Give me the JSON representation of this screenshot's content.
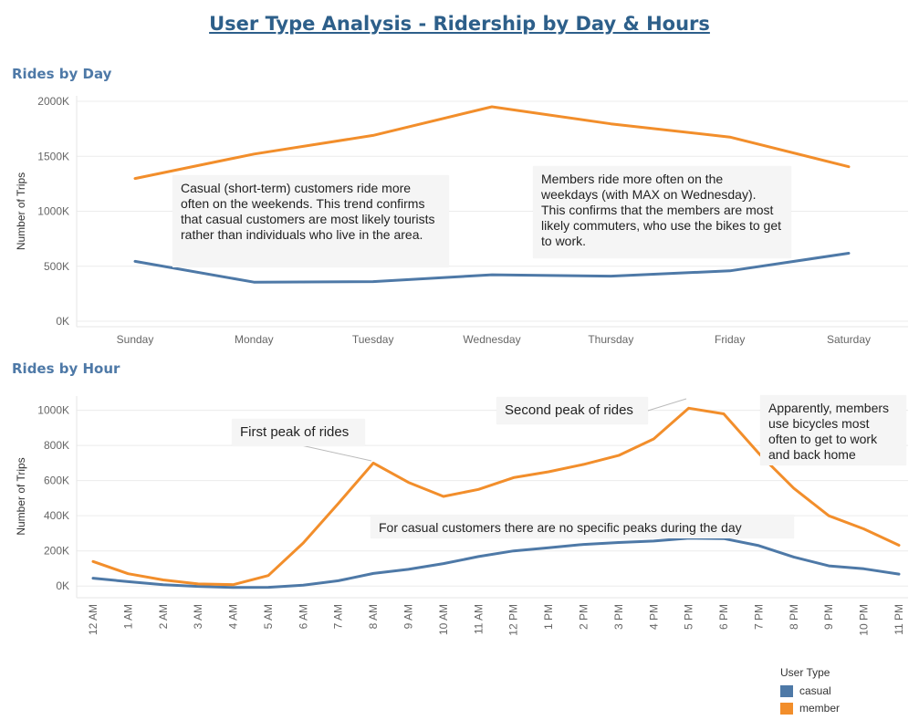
{
  "title": "User Type Analysis  - Ridership by Day & Hours",
  "colors": {
    "casual": "#4e79a7",
    "member": "#f28e2b"
  },
  "chart_data": [
    {
      "type": "line",
      "title": "Rides by Day",
      "ylabel": "Number of Trips",
      "xlabel": "",
      "categories": [
        "Sunday",
        "Monday",
        "Tuesday",
        "Wednesday",
        "Thursday",
        "Friday",
        "Saturday"
      ],
      "series": [
        {
          "name": "casual",
          "values": [
            544000,
            355000,
            360000,
            422000,
            410000,
            458000,
            618000
          ]
        },
        {
          "name": "member",
          "values": [
            1298000,
            1520000,
            1690000,
            1950000,
            1795000,
            1675000,
            1405000
          ]
        }
      ],
      "ylim": [
        0,
        2000000
      ],
      "yticks": [
        0,
        500000,
        1000000,
        1500000,
        2000000
      ],
      "ytick_labels": [
        "0K",
        "500K",
        "1000K",
        "1500K",
        "2000K"
      ],
      "grid": true
    },
    {
      "type": "line",
      "title": "Rides by Hour",
      "ylabel": "Number of Trips",
      "xlabel": "",
      "categories": [
        "12 AM",
        "1 AM",
        "2 AM",
        "3 AM",
        "4 AM",
        "5 AM",
        "6 AM",
        "7 AM",
        "8 AM",
        "9 AM",
        "10 AM",
        "11 AM",
        "12 PM",
        "1 PM",
        "2 PM",
        "3 PM",
        "4 PM",
        "5 PM",
        "6 PM",
        "7 PM",
        "8 PM",
        "9 PM",
        "10 PM",
        "11 PM"
      ],
      "series": [
        {
          "name": "casual",
          "values": [
            45000,
            25000,
            8000,
            -2000,
            -8000,
            -7000,
            5000,
            30000,
            72000,
            95000,
            128000,
            168000,
            200000,
            218000,
            237000,
            248000,
            256000,
            272000,
            270000,
            230000,
            165000,
            115000,
            98000,
            68000
          ]
        },
        {
          "name": "member",
          "values": [
            140000,
            70000,
            35000,
            12000,
            8000,
            60000,
            245000,
            470000,
            700000,
            590000,
            510000,
            550000,
            617000,
            650000,
            692000,
            743000,
            837000,
            1012000,
            980000,
            755000,
            556000,
            400000,
            325000,
            232000
          ]
        }
      ],
      "ylim": [
        -30000,
        1050000
      ],
      "yticks": [
        0,
        200000,
        400000,
        600000,
        800000,
        1000000
      ],
      "ytick_labels": [
        "0K",
        "200K",
        "400K",
        "600K",
        "800K",
        "1000K"
      ],
      "grid": true
    }
  ],
  "annotations": {
    "day_casual": "Casual (short-term) customers ride more often on the weekends. This trend confirms that casual customers are most likely tourists rather than individuals who live in the area.",
    "day_member": "Members ride more often on the weekdays (with MAX on Wednesday). This confirms that the members are most likely commuters, who use the bikes to get to work.",
    "hour_first_peak": "First peak of rides",
    "hour_second_peak": "Second peak of rides",
    "hour_members": "Apparently, members use bicycles most often to get to work and back home",
    "hour_casual": "For casual customers there are no specific peaks during the day"
  },
  "legend": {
    "title": "User Type",
    "items": [
      {
        "label": "casual",
        "color": "#4e79a7"
      },
      {
        "label": "member",
        "color": "#f28e2b"
      }
    ]
  }
}
